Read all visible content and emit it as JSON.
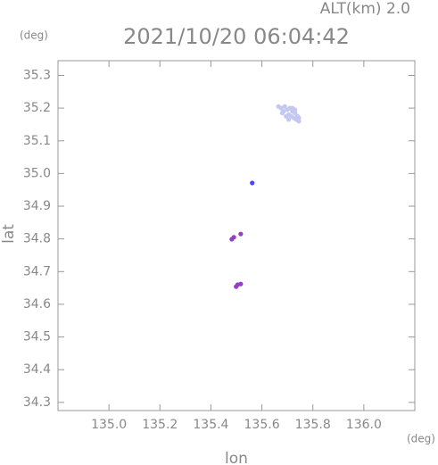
{
  "chart_data": {
    "type": "scatter",
    "title": "2021/10/20 06:04:42",
    "subtitle": "ALT(km) 2.0",
    "x_label": "lon",
    "y_label": "lat",
    "x_unit": "(deg)",
    "y_unit": "(deg)",
    "xlim": [
      134.8,
      136.2
    ],
    "ylim": [
      34.275,
      35.345
    ],
    "xticks": [
      {
        "value": 135,
        "label": "135.0"
      },
      135.2,
      135.4,
      135.6,
      135.8,
      {
        "value": 136,
        "label": "136.0"
      }
    ],
    "yticks": [
      34.3,
      34.4,
      34.5,
      34.6,
      34.7,
      34.8,
      34.9,
      {
        "value": 35,
        "label": "35.0"
      },
      35.1,
      35.2,
      35.3
    ],
    "series": [
      {
        "color": "#c4c8f0",
        "x": [
          135.665,
          135.675,
          135.685,
          135.69,
          135.7,
          135.705,
          135.71,
          135.715,
          135.72,
          135.725,
          135.73,
          135.735,
          135.74,
          135.745,
          135.695,
          135.705,
          135.72,
          135.73,
          135.68,
          135.745
        ],
        "y": [
          35.205,
          35.2,
          35.19,
          35.205,
          35.195,
          35.18,
          35.2,
          35.175,
          35.19,
          35.17,
          35.185,
          35.165,
          35.175,
          35.16,
          35.175,
          35.165,
          35.2,
          35.195,
          35.185,
          35.17
        ]
      },
      {
        "color": "#4848ff",
        "x": [
          135.562
        ],
        "y": [
          34.971
        ]
      },
      {
        "color": "#9040c0",
        "x": [
          135.482,
          135.49,
          135.517,
          135.499,
          135.505,
          135.517
        ],
        "y": [
          34.799,
          34.805,
          34.815,
          34.654,
          34.66,
          34.662
        ]
      }
    ]
  }
}
